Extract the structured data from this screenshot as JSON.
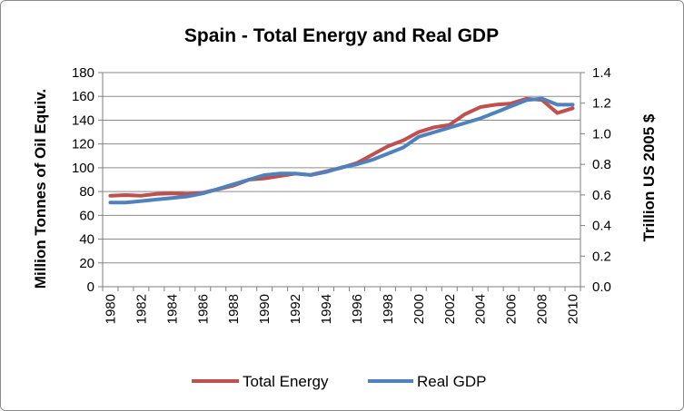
{
  "chart_data": {
    "type": "line",
    "title": "Spain - Total Energy and Real GDP",
    "xlabel": "",
    "ylabel_left": "Million Tonnes of Oil Equiv.",
    "ylabel_right": "Trillion US 2005 $",
    "x": [
      1980,
      1981,
      1982,
      1983,
      1984,
      1985,
      1986,
      1987,
      1988,
      1989,
      1990,
      1991,
      1992,
      1993,
      1994,
      1995,
      1996,
      1997,
      1998,
      1999,
      2000,
      2001,
      2002,
      2003,
      2004,
      2005,
      2006,
      2007,
      2008,
      2009,
      2010
    ],
    "x_tick_labels": [
      "1980",
      "1982",
      "1984",
      "1986",
      "1988",
      "1990",
      "1992",
      "1994",
      "1996",
      "1998",
      "2000",
      "2002",
      "2004",
      "2006",
      "2008",
      "2010"
    ],
    "ylim_left": [
      0,
      180
    ],
    "y_ticks_left": [
      "0",
      "20",
      "40",
      "60",
      "80",
      "100",
      "120",
      "140",
      "160",
      "180"
    ],
    "ylim_right": [
      0,
      1.4
    ],
    "y_ticks_right": [
      "0.0",
      "0.2",
      "0.4",
      "0.6",
      "0.8",
      "1.0",
      "1.2",
      "1.4"
    ],
    "grid": "horizontal",
    "legend": "bottom",
    "series": [
      {
        "name": "Total Energy",
        "axis": "left",
        "color": "#c0504d",
        "values": [
          76.5,
          77,
          76.5,
          78,
          78.5,
          78,
          79,
          82,
          85,
          90,
          91,
          93,
          95,
          94,
          97,
          100,
          104,
          111,
          118,
          123,
          130,
          134,
          136,
          145,
          151,
          153,
          154,
          158,
          157,
          146,
          150
        ]
      },
      {
        "name": "Real GDP",
        "axis": "right",
        "color": "#4f81bd",
        "values": [
          0.55,
          0.55,
          0.56,
          0.57,
          0.58,
          0.59,
          0.61,
          0.64,
          0.67,
          0.7,
          0.73,
          0.74,
          0.74,
          0.73,
          0.75,
          0.78,
          0.8,
          0.83,
          0.87,
          0.91,
          0.98,
          1.01,
          1.04,
          1.07,
          1.1,
          1.14,
          1.18,
          1.22,
          1.23,
          1.19,
          1.19
        ]
      }
    ]
  }
}
